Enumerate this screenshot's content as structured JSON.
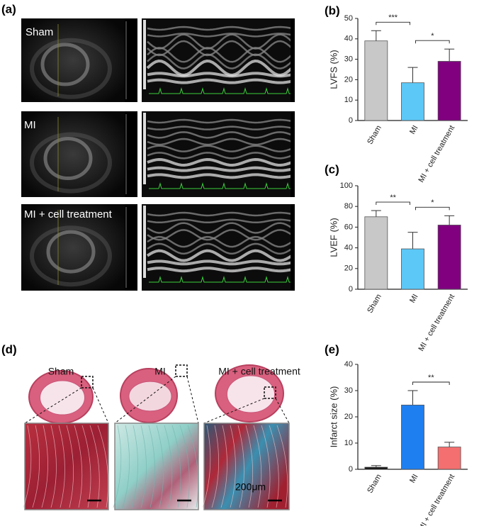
{
  "panel_labels": [
    "(a)",
    "(b)",
    "(c)",
    "(d)",
    "(e)"
  ],
  "echo_labels": [
    "Sham",
    "MI",
    "MI + cell treatment"
  ],
  "histology_labels": [
    "Sham",
    "MI",
    "MI + cell treatment"
  ],
  "scale_bar": "200μm",
  "chart_data": [
    {
      "type": "bar",
      "ylabel": "LVFS (%)",
      "categories": [
        "Sham",
        "MI",
        "MI + cell treatment"
      ],
      "values": [
        39,
        18.5,
        29
      ],
      "errors": [
        5,
        7.5,
        6
      ],
      "colors": [
        "#c8c8c8",
        "#5cc8f7",
        "#800080"
      ],
      "ylim": [
        0,
        50
      ],
      "yticks": [
        0,
        10,
        20,
        30,
        40,
        50
      ],
      "annotations": [
        {
          "label": "***",
          "between": [
            "Sham",
            "MI"
          ]
        },
        {
          "label": "*",
          "between": [
            "MI",
            "MI + cell treatment"
          ]
        }
      ]
    },
    {
      "type": "bar",
      "ylabel": "LVEF (%)",
      "categories": [
        "Sham",
        "MI",
        "MI + cell treatment"
      ],
      "values": [
        70,
        39,
        62
      ],
      "errors": [
        6,
        16,
        9
      ],
      "colors": [
        "#c8c8c8",
        "#5cc8f7",
        "#800080"
      ],
      "ylim": [
        0,
        100
      ],
      "yticks": [
        0,
        20,
        40,
        60,
        80,
        100
      ],
      "annotations": [
        {
          "label": "**",
          "between": [
            "Sham",
            "MI"
          ]
        },
        {
          "label": "*",
          "between": [
            "MI",
            "MI + cell treatment"
          ]
        }
      ]
    },
    {
      "type": "bar",
      "ylabel": "Infarct size (%)",
      "categories": [
        "Sham",
        "MI",
        "MI + cell treatment"
      ],
      "values": [
        0.8,
        24.5,
        8.5
      ],
      "errors": [
        0.6,
        5.5,
        1.8
      ],
      "colors": [
        "#111111",
        "#1e7ff0",
        "#f46f6f"
      ],
      "ylim": [
        0,
        40
      ],
      "yticks": [
        0,
        10,
        20,
        30,
        40
      ],
      "annotations": [
        {
          "label": "**",
          "between": [
            "MI",
            "MI + cell treatment"
          ]
        }
      ]
    }
  ]
}
